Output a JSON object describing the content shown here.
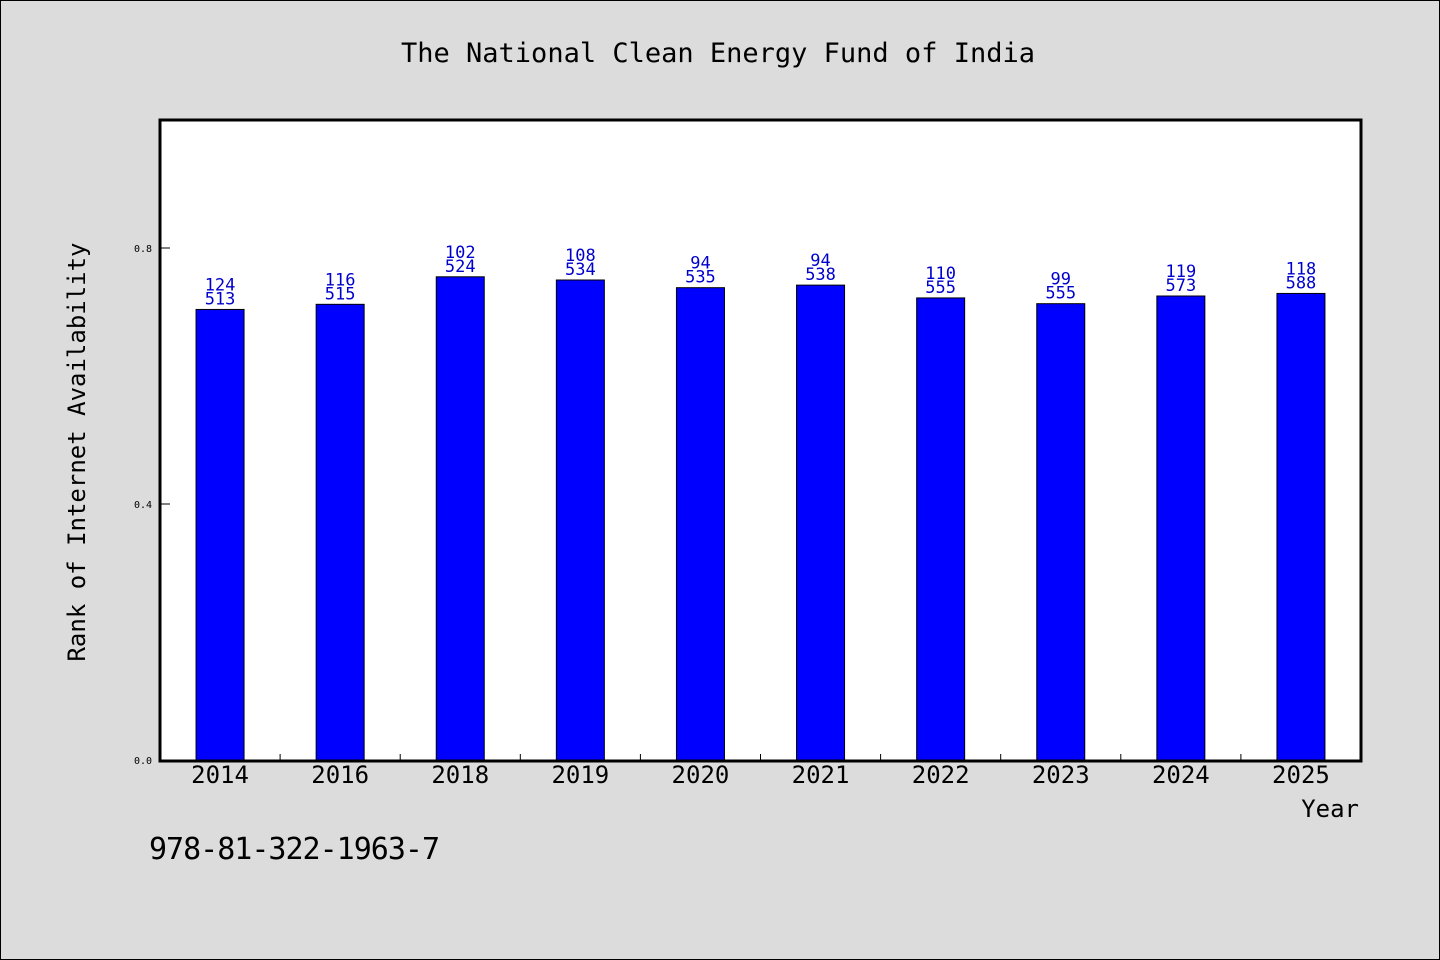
{
  "chart_data": {
    "type": "bar",
    "title": "The National Clean Energy Fund of India",
    "xlabel": "Year",
    "ylabel": "Rank of Internet Availability",
    "categories": [
      "2014",
      "2016",
      "2018",
      "2019",
      "2020",
      "2021",
      "2022",
      "2023",
      "2024",
      "2025"
    ],
    "values": [
      0.704,
      0.712,
      0.755,
      0.75,
      0.738,
      0.742,
      0.722,
      0.713,
      0.725,
      0.729
    ],
    "label_top": [
      "124",
      "116",
      "102",
      "108",
      "94",
      "94",
      "110",
      "99",
      "119",
      "118"
    ],
    "label_bottom": [
      "513",
      "515",
      "524",
      "534",
      "535",
      "538",
      "555",
      "555",
      "573",
      "588"
    ],
    "ylim": [
      0,
      1.0
    ],
    "yticks": [
      {
        "value": 0.0,
        "label": "0.0"
      },
      {
        "value": 0.4,
        "label": "0.4"
      },
      {
        "value": 0.8,
        "label": "0.8"
      }
    ],
    "grid": false,
    "colors": {
      "bar": "#0000ff",
      "bar_stroke": "#000000",
      "data_label": "#0000cc",
      "background": "#dcdcdc",
      "plot_background": "#ffffff"
    }
  },
  "footer": {
    "isbn": "978-81-322-1963-7"
  }
}
